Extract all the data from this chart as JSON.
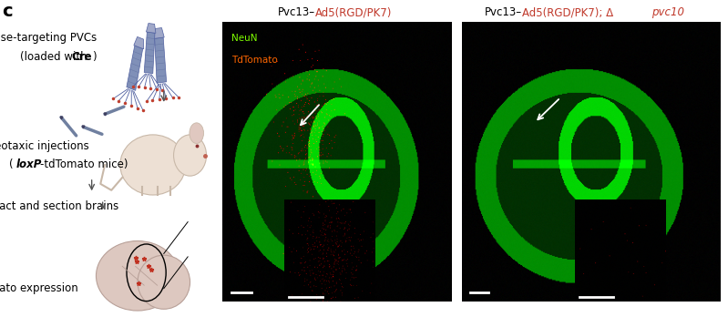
{
  "panel_label": "c",
  "panel_label_fontsize": 14,
  "panel_label_bold": true,
  "background_color": "#ffffff",
  "title_fontsize": 8.5,
  "legend_fontsize": 7.5,
  "figsize": [
    7.99,
    3.48
  ],
  "dpi": 100,
  "title1_black": "Pvc13–",
  "title1_red": "Ad5(RGD/PK7)",
  "title2_black": "Pvc13–",
  "title2_red": "Ad5(RGD/PK7); Δ",
  "title2_italic": "pvc10",
  "legend_neun_color": "#7fff00",
  "legend_tdtomato_color": "#ff6600",
  "text_color": "#000000",
  "arrow_color": "#555555",
  "scale_bar_color": "#ffffff",
  "pvc_body_color": "#8090b8",
  "pvc_edge_color": "#5060a0",
  "pvc_cap_color": "#a0a8c8",
  "pvc_foot_color": "#c04030",
  "needle_color": "#7080a0",
  "mouse_body_color": "#ede0d4",
  "mouse_edge_color": "#c8b8a8",
  "mouse_ear_color": "#e0c8c0",
  "mouse_nose_color": "#c06050",
  "mouse_eye_color": "#8b3030",
  "brain_color": "#ddc8c0",
  "brain_edge_color": "#b8a098",
  "red_cell_color": "#c03020",
  "white_arrow_color": "#ffffff",
  "inset_border_color": "#888888"
}
